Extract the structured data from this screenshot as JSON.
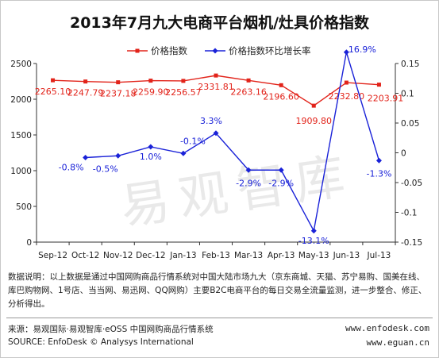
{
  "title": "2013年7月九大电商平台烟机/灶具价格指数",
  "watermark": "易观智库",
  "chart_data": {
    "type": "line",
    "categories": [
      "Sep-12",
      "Oct-12",
      "Nov-12",
      "Dec-12",
      "Jan-13",
      "Feb-13",
      "Mar-13",
      "Apr-13",
      "May-13",
      "Jun-13",
      "Jul-13"
    ],
    "series": [
      {
        "name": "价格指数",
        "axis": "left",
        "color": "#e2231a",
        "values": [
          2265.1,
          2247.79,
          2237.18,
          2259.9,
          2256.57,
          2331.81,
          2263.16,
          2196.6,
          1909.8,
          2232.8,
          2203.91
        ],
        "labels": [
          "2265.10",
          "2247.79",
          "2237.18",
          "2259.90",
          "2256.57",
          "2331.81",
          "2263.16",
          "2196.60",
          "1909.80",
          "2232.80",
          "2203.91"
        ]
      },
      {
        "name": "价格指数环比增长率",
        "axis": "right",
        "color": "#1a22d8",
        "values": [
          null,
          -0.008,
          -0.005,
          0.01,
          -0.001,
          0.033,
          -0.029,
          -0.029,
          -0.131,
          0.169,
          -0.013
        ],
        "labels": [
          "",
          "-0.8%",
          "-0.5%",
          "1.0%",
          "-0.1%",
          "3.3%",
          "-2.9%",
          "-2.9%",
          "-13.1%",
          "16.9%",
          "-1.3%"
        ]
      }
    ],
    "y_left": {
      "min": 0,
      "max": 2500,
      "ticks": [
        0,
        500,
        1000,
        1500,
        2000,
        2500
      ]
    },
    "y_right": {
      "min": -0.15,
      "max": 0.15,
      "ticks": [
        -0.15,
        -0.1,
        -0.05,
        0,
        0.05,
        0.1,
        0.15
      ],
      "tick_labels": [
        "-0.15",
        "-0.1",
        "-0.05",
        "0",
        "0.05",
        "0.1",
        "0.15"
      ]
    },
    "legend": "top"
  },
  "note": "数据说明：以上数据是通过中国网购商品行情系统对中国大陆市场九大（京东商城、天猫、苏宁易购、国美在线、库巴购物网、1号店、当当网、易迅网、QQ网购）主要B2C电商平台的每日交易全流量监测，进一步整合、修正、分析得出。",
  "source": {
    "line1": "来源：易观国际·易观智库·eOSS 中国网购商品行情系统",
    "line2": "SOURCE: EnfoDesk © Analysys International",
    "url1": "www.enfodesk.com",
    "url2": "www.eguan.cn"
  }
}
